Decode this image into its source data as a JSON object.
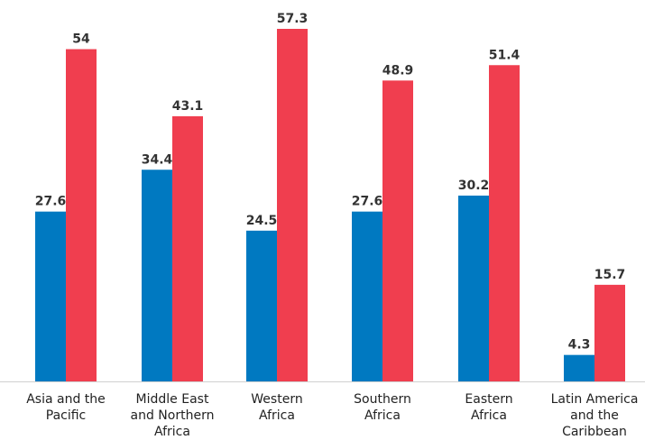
{
  "chart_data": {
    "type": "bar",
    "title": "",
    "xlabel": "",
    "ylabel": "",
    "categories": [
      [
        "Asia and the",
        "Pacific"
      ],
      [
        "Middle East",
        "and Northern",
        "Africa"
      ],
      [
        "Western",
        "Africa"
      ],
      [
        "Southern",
        "Africa"
      ],
      [
        "Eastern",
        "Africa"
      ],
      [
        "Latin America",
        "and the",
        "Caribbean"
      ]
    ],
    "series": [
      {
        "values": [
          27.6,
          34.4,
          24.5,
          27.6,
          30.2,
          4.3
        ],
        "color": "#0079C1"
      },
      {
        "values": [
          54,
          43.1,
          57.3,
          48.9,
          51.4,
          15.7
        ],
        "color": "#F03E4F"
      }
    ],
    "ylim": [
      0,
      57.3
    ],
    "grid": false,
    "legend": "none"
  }
}
